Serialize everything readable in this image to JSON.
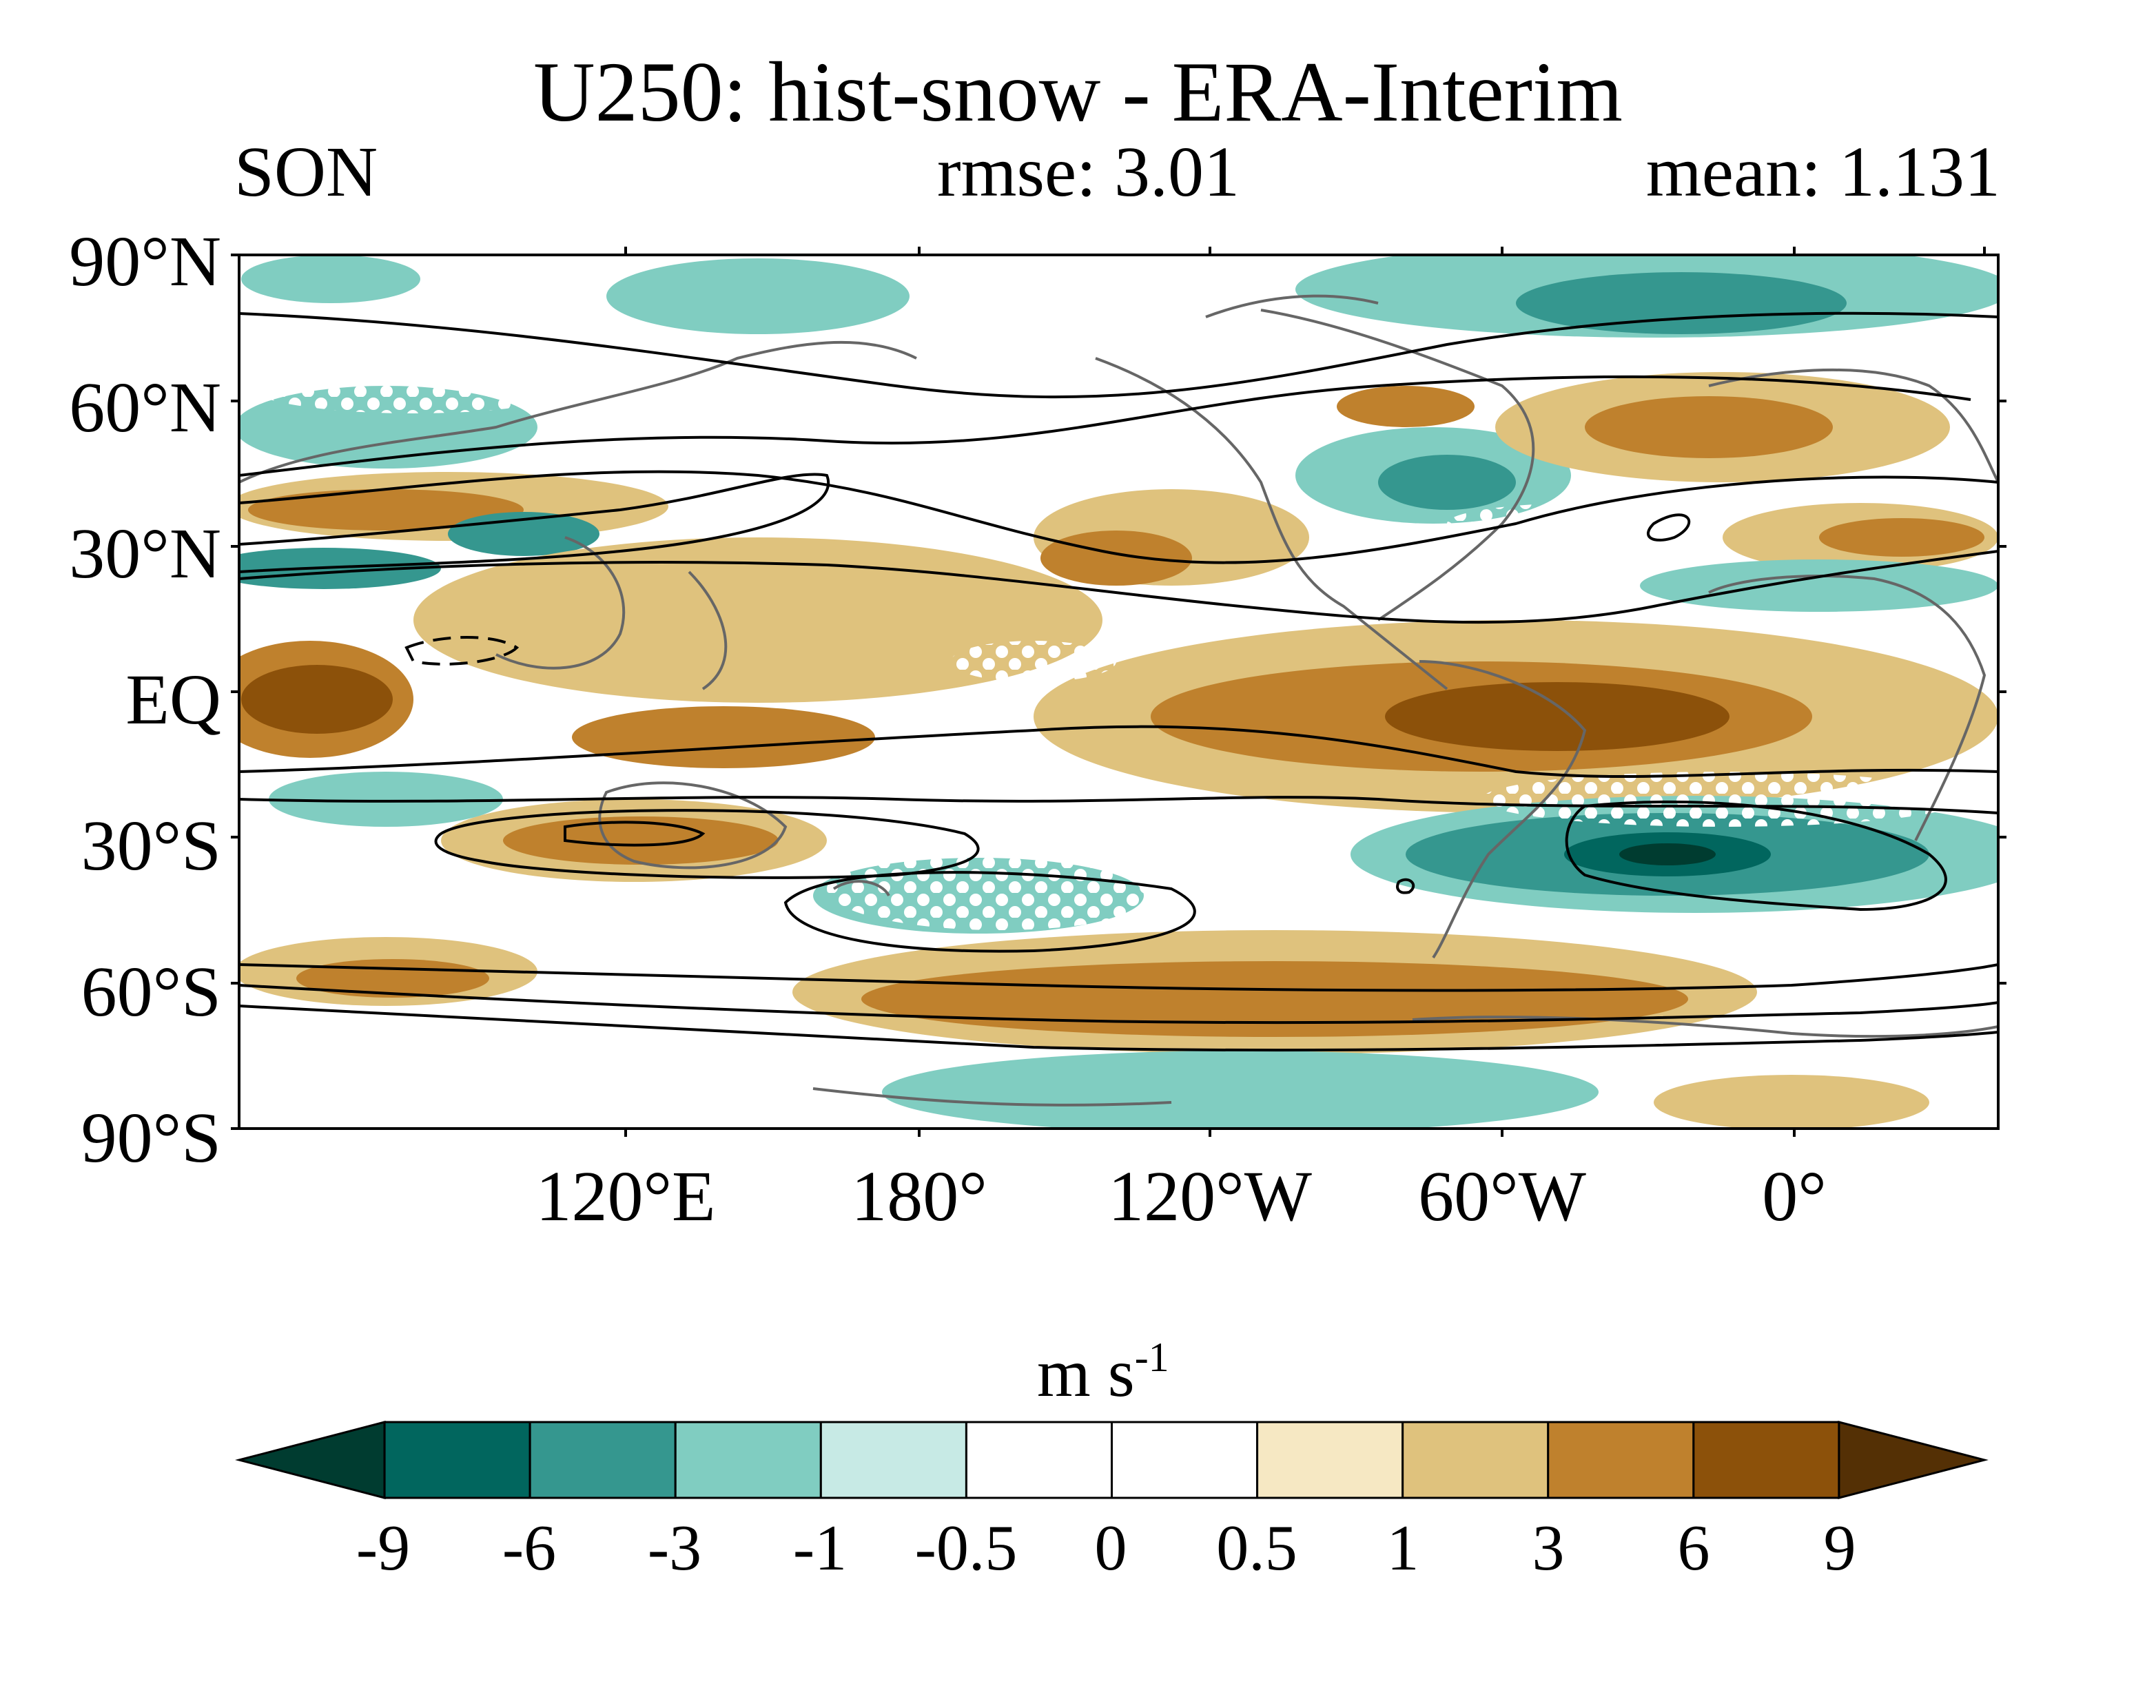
{
  "title": "U250: hist-snow - ERA-Interim",
  "season": "SON",
  "rmse": "rmse: 3.01",
  "mean": "mean: 1.131",
  "lat_labels": [
    "90°N",
    "60°N",
    "30°N",
    "EQ",
    "30°S",
    "60°S",
    "90°S"
  ],
  "lon_labels": [
    "120°E",
    "180°",
    "120°W",
    "60°W",
    "0°"
  ],
  "colorbar": {
    "unit": "m s",
    "unit_exponent": "-1",
    "tick_labels": [
      "-9",
      "-6",
      "-3",
      "-1",
      "-0.5",
      "0",
      "0.5",
      "1",
      "3",
      "6",
      "9"
    ],
    "colors": [
      "#003c30",
      "#01665e",
      "#35978f",
      "#80cdc1",
      "#c7eae5",
      "#ffffff",
      "#ffffff",
      "#f6e8c3",
      "#dfc27d",
      "#bf812d",
      "#8c510a",
      "#543005"
    ]
  },
  "map_colors": {
    "continent_outline": "#666666",
    "climatology_contour": "#000000",
    "stipple": "#ffffff"
  }
}
